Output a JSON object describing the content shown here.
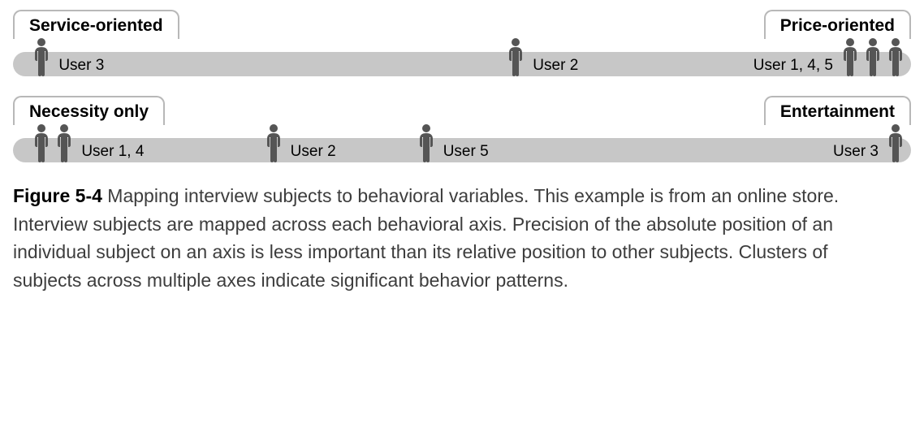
{
  "person_color": "#555555",
  "track_color": "#c7c7c7",
  "border_color": "#b8b8b8",
  "axes": [
    {
      "left_label": "Service-oriented",
      "right_label": "Price-oriented",
      "groups": [
        {
          "pos_pct": 2.2,
          "count": 1,
          "label": "User 3",
          "label_side": "right"
        },
        {
          "pos_pct": 55,
          "count": 1,
          "label": "User 2",
          "label_side": "right"
        },
        {
          "pos_pct": 72,
          "count": 3,
          "label": "User 1, 4, 5",
          "label_side": "left",
          "align_right": true
        }
      ]
    },
    {
      "left_label": "Necessity only",
      "right_label": "Entertainment",
      "groups": [
        {
          "pos_pct": 2.2,
          "count": 2,
          "label": "User 1, 4",
          "label_side": "right"
        },
        {
          "pos_pct": 28,
          "count": 1,
          "label": "User 2",
          "label_side": "right"
        },
        {
          "pos_pct": 45,
          "count": 1,
          "label": "User 5",
          "label_side": "right"
        },
        {
          "pos_pct": 85,
          "count": 1,
          "label": "User 3",
          "label_side": "left",
          "align_right": true
        }
      ]
    }
  ],
  "caption_fig": "Figure 5-4",
  "caption_text": " Mapping interview subjects to behavioral variables. This example is from an online store. Interview subjects are mapped across each behavioral axis. Precision of the absolute position of an individual subject on an axis is less important than its relative position to other subjects. Clusters of subjects across multiple axes indicate significant behavior patterns."
}
